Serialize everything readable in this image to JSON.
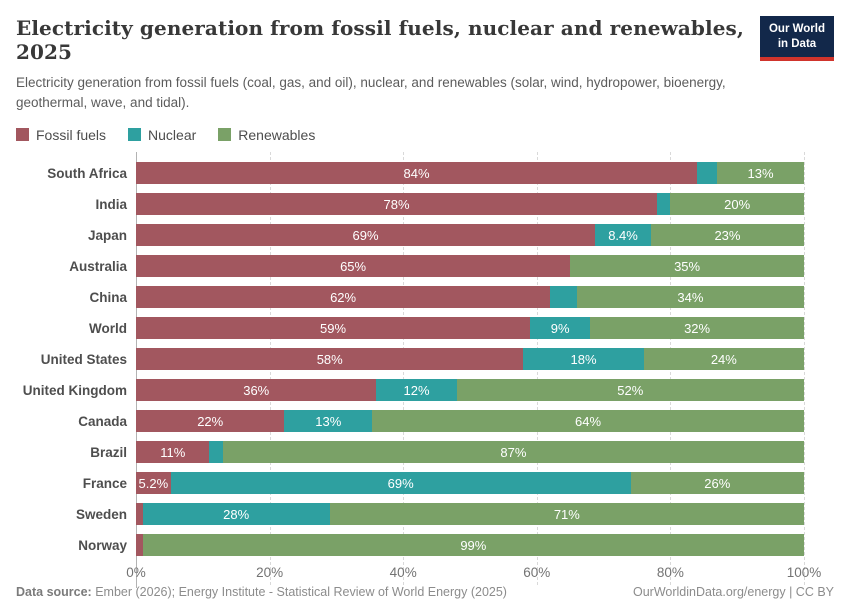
{
  "header": {
    "title": "Electricity generation from fossil fuels, nuclear and renewables, 2025",
    "subtitle": "Electricity generation from fossil fuels (coal, gas, and oil), nuclear, and renewables (solar, wind, hydropower, bioenergy, geothermal, wave, and tidal).",
    "logo": {
      "line1": "Our World",
      "line2": "in Data"
    }
  },
  "colors": {
    "fossil": "#a2575f",
    "nuclear": "#2ea0a0",
    "renewables": "#7aa167",
    "logo_bg": "#12284a",
    "logo_red": "#d0342c"
  },
  "chart_data": {
    "type": "bar",
    "stacked": true,
    "horizontal": true,
    "title": "Electricity generation from fossil fuels, nuclear and renewables, 2025",
    "xlabel": "",
    "ylabel": "",
    "xlim": [
      0,
      100
    ],
    "unit": "%",
    "grid": "dashed-vertical",
    "legend_position": "top",
    "x_ticks": [
      0,
      20,
      40,
      60,
      80,
      100
    ],
    "x_tick_labels": [
      "0%",
      "20%",
      "40%",
      "60%",
      "80%",
      "100%"
    ],
    "categories": [
      "South Africa",
      "India",
      "Japan",
      "Australia",
      "China",
      "World",
      "United States",
      "United Kingdom",
      "Canada",
      "Brazil",
      "France",
      "Sweden",
      "Norway"
    ],
    "series": [
      {
        "name": "Fossil fuels",
        "key": "fossil",
        "color": "#a2575f",
        "values": [
          84,
          78,
          69,
          65,
          62,
          59,
          58,
          36,
          22,
          11,
          5.2,
          1,
          1
        ],
        "value_labels": [
          "84%",
          "78%",
          "69%",
          "65%",
          "62%",
          "59%",
          "58%",
          "36%",
          "22%",
          "11%",
          "5.2%",
          "",
          ""
        ]
      },
      {
        "name": "Nuclear",
        "key": "nuclear",
        "color": "#2ea0a0",
        "values": [
          3,
          2,
          8.4,
          0,
          4,
          9,
          18,
          12,
          13,
          2,
          69,
          28,
          0
        ],
        "value_labels": [
          "",
          "",
          "8.4%",
          "",
          "",
          "9%",
          "18%",
          "12%",
          "13%",
          "",
          "69%",
          "28%",
          ""
        ]
      },
      {
        "name": "Renewables",
        "key": "renewables",
        "color": "#7aa167",
        "values": [
          13,
          20,
          23,
          35,
          34,
          32,
          24,
          52,
          64,
          87,
          26,
          71,
          99
        ],
        "value_labels": [
          "13%",
          "20%",
          "23%",
          "35%",
          "34%",
          "32%",
          "24%",
          "52%",
          "64%",
          "87%",
          "26%",
          "71%",
          "99%"
        ]
      }
    ]
  },
  "footer": {
    "source_label": "Data source:",
    "source_text": " Ember (2026); Energy Institute - Statistical Review of World Energy (2025)",
    "right_text": "OurWorldinData.org/energy | CC BY"
  }
}
